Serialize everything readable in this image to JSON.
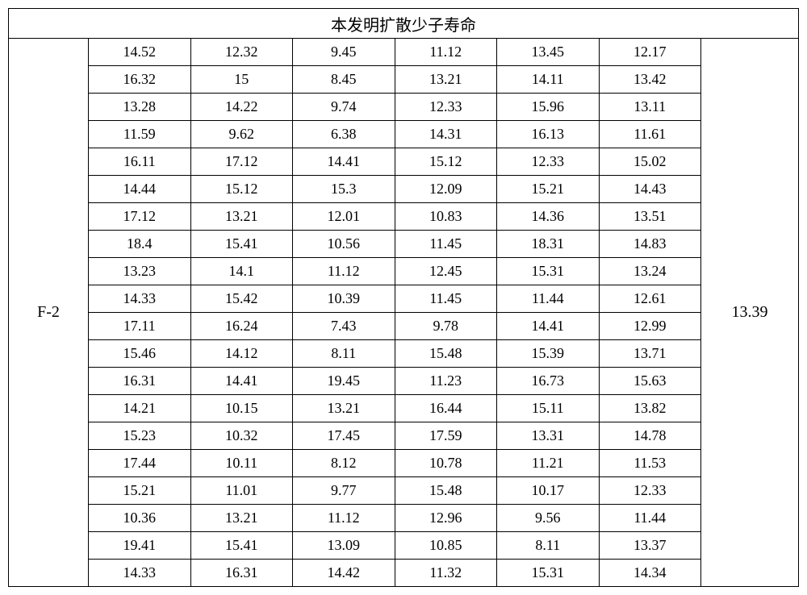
{
  "table": {
    "title": "本发明扩散少子寿命",
    "left_label": "F-2",
    "right_value": "13.39",
    "rows": [
      [
        "14.52",
        "12.32",
        "9.45",
        "11.12",
        "13.45",
        "12.17"
      ],
      [
        "16.32",
        "15",
        "8.45",
        "13.21",
        "14.11",
        "13.42"
      ],
      [
        "13.28",
        "14.22",
        "9.74",
        "12.33",
        "15.96",
        "13.11"
      ],
      [
        "11.59",
        "9.62",
        "6.38",
        "14.31",
        "16.13",
        "11.61"
      ],
      [
        "16.11",
        "17.12",
        "14.41",
        "15.12",
        "12.33",
        "15.02"
      ],
      [
        "14.44",
        "15.12",
        "15.3",
        "12.09",
        "15.21",
        "14.43"
      ],
      [
        "17.12",
        "13.21",
        "12.01",
        "10.83",
        "14.36",
        "13.51"
      ],
      [
        "18.4",
        "15.41",
        "10.56",
        "11.45",
        "18.31",
        "14.83"
      ],
      [
        "13.23",
        "14.1",
        "11.12",
        "12.45",
        "15.31",
        "13.24"
      ],
      [
        "14.33",
        "15.42",
        "10.39",
        "11.45",
        "11.44",
        "12.61"
      ],
      [
        "17.11",
        "16.24",
        "7.43",
        "9.78",
        "14.41",
        "12.99"
      ],
      [
        "15.46",
        "14.12",
        "8.11",
        "15.48",
        "15.39",
        "13.71"
      ],
      [
        "16.31",
        "14.41",
        "19.45",
        "11.23",
        "16.73",
        "15.63"
      ],
      [
        "14.21",
        "10.15",
        "13.21",
        "16.44",
        "15.11",
        "13.82"
      ],
      [
        "15.23",
        "10.32",
        "17.45",
        "17.59",
        "13.31",
        "14.78"
      ],
      [
        "17.44",
        "10.11",
        "8.12",
        "10.78",
        "11.21",
        "11.53"
      ],
      [
        "15.21",
        "11.01",
        "9.77",
        "15.48",
        "10.17",
        "12.33"
      ],
      [
        "10.36",
        "13.21",
        "11.12",
        "12.96",
        "9.56",
        "11.44"
      ],
      [
        "19.41",
        "15.41",
        "13.09",
        "10.85",
        "8.11",
        "13.37"
      ],
      [
        "14.33",
        "16.31",
        "14.42",
        "11.32",
        "15.31",
        "14.34"
      ]
    ],
    "colors": {
      "border": "#000000",
      "background": "#ffffff",
      "text": "#000000"
    },
    "font_family": "SimSun",
    "title_fontsize": 20,
    "cell_fontsize": 18,
    "num_data_cols": 6,
    "num_rows": 20
  }
}
